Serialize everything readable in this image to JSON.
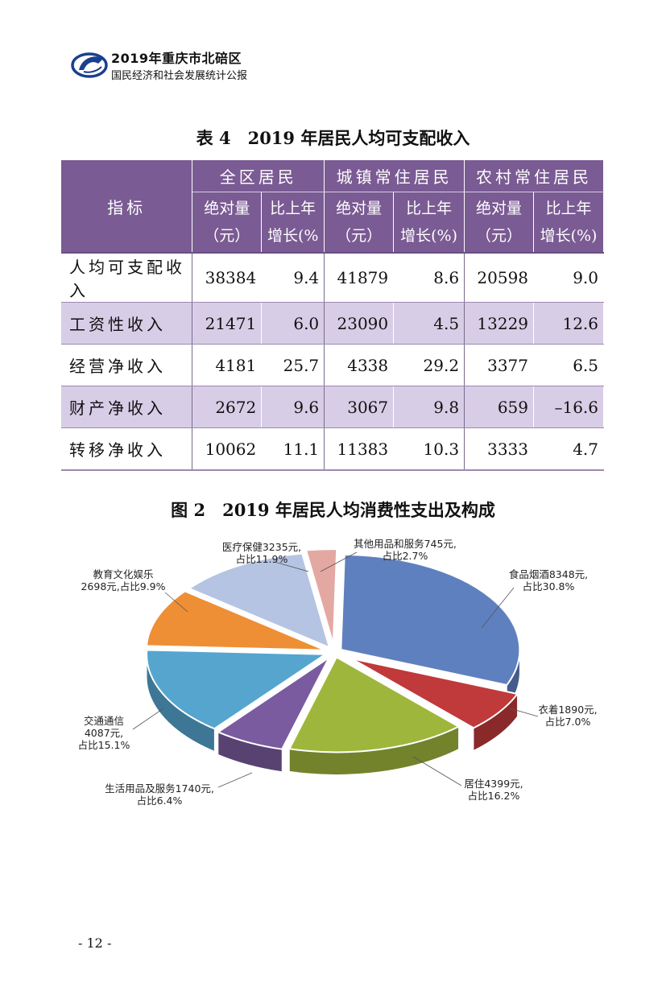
{
  "header": {
    "line1": "2019年重庆市北碚区",
    "line2": "国民经济和社会发展统计公报"
  },
  "table": {
    "title": "表 4　2019 年居民人均可支配收入",
    "indicator_header": "指标",
    "groups": [
      "全区居民",
      "城镇常住居民",
      "农村常住居民"
    ],
    "sub_abs": "绝对量（元）",
    "sub_abs_line1": "绝对量",
    "sub_abs_line2": "（元）",
    "sub_growth_cut_line1": "比上年",
    "sub_growth_cut_line2": "增长(%",
    "sub_growth_line1": "比上年",
    "sub_growth_line2": "增长(%)",
    "rows": [
      {
        "label": "人均可支配收入",
        "values": [
          "38384",
          "9.4",
          "41879",
          "8.6",
          "20598",
          "9.0"
        ]
      },
      {
        "label": "工资性收入",
        "values": [
          "21471",
          "6.0",
          "23090",
          "4.5",
          "13229",
          "12.6"
        ]
      },
      {
        "label": "经营净收入",
        "values": [
          "4181",
          "25.7",
          "4338",
          "29.2",
          "3377",
          "6.5"
        ]
      },
      {
        "label": "财产净收入",
        "values": [
          "2672",
          "9.6",
          "3067",
          "9.8",
          "659",
          "–16.6"
        ]
      },
      {
        "label": "转移净收入",
        "values": [
          "10062",
          "11.1",
          "11383",
          "10.3",
          "3333",
          "4.7"
        ]
      }
    ]
  },
  "figure": {
    "title": "图 2　2019 年居民人均消费性支出及构成"
  },
  "chart_data": {
    "type": "pie",
    "title": "2019 年居民人均消费性支出及构成",
    "unit": "元",
    "slices": [
      {
        "name": "食品烟酒",
        "value": 8348,
        "share": 30.8,
        "label1": "食品烟酒8348元,",
        "label2": "占比30.8%",
        "color": "#5f80bf"
      },
      {
        "name": "衣着",
        "value": 1890,
        "share": 7.0,
        "label1": "衣着1890元,",
        "label2": "占比7.0%",
        "color": "#c0393b"
      },
      {
        "name": "居住",
        "value": 4399,
        "share": 16.2,
        "label1": "居住4399元,",
        "label2": "占比16.2%",
        "color": "#9fb63c"
      },
      {
        "name": "生活用品及服务",
        "value": 1740,
        "share": 6.4,
        "label1": "生活用品及服务1740元,",
        "label2": "占比6.4%",
        "color": "#7a5b9f"
      },
      {
        "name": "交通通信",
        "value": 4087,
        "share": 15.1,
        "label1": "交通通信",
        "label2": "4087元,",
        "label3": "占比15.1%",
        "color": "#55a5cf"
      },
      {
        "name": "教育文化娱乐",
        "value": 2698,
        "share": 9.9,
        "label1": "教育文化娱乐",
        "label2": "2698元,占比9.9%",
        "color": "#ee8f35"
      },
      {
        "name": "医疗保健",
        "value": 3235,
        "share": 11.9,
        "label1": "医疗保健3235元,",
        "label2": "占比11.9%",
        "color": "#b5c4e2"
      },
      {
        "name": "其他用品和服务",
        "value": 745,
        "share": 2.7,
        "label1": "其他用品和服务745元,",
        "label2": "占比2.7%",
        "color": "#e4a8a3"
      }
    ]
  },
  "page_number": "- 12 -"
}
